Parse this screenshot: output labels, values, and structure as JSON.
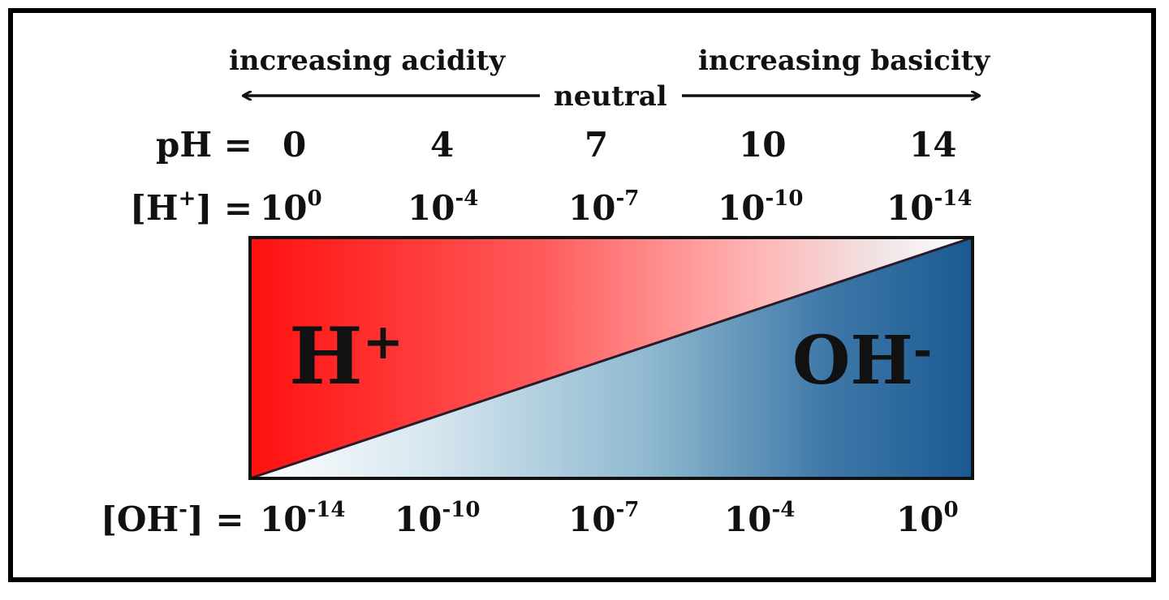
{
  "title_left": "increasing acidity",
  "title_right": "increasing basicity",
  "neutral_label": "neutral",
  "ph_label": "pH =",
  "ph_values": [
    "0",
    "4",
    "7",
    "10",
    "14"
  ],
  "h_row": {
    "prefix": "[H",
    "prefix_sup": "+",
    "prefix_end": "] =",
    "base": "10",
    "exponents": [
      "0",
      "-4",
      "-7",
      "-10",
      "-14"
    ]
  },
  "oh_row": {
    "prefix": "[OH",
    "prefix_sup": "-",
    "prefix_end": "] =",
    "base": "10",
    "exponents": [
      "-14",
      "-10",
      "-7",
      "-4",
      "0"
    ]
  },
  "region_left": {
    "label": "H",
    "sup": "+"
  },
  "region_right": {
    "label": "OH",
    "sup": "-"
  },
  "colors": {
    "acid": "#ff1a1a",
    "base": "#1f5a8f",
    "neutral": "#ffffff"
  }
}
